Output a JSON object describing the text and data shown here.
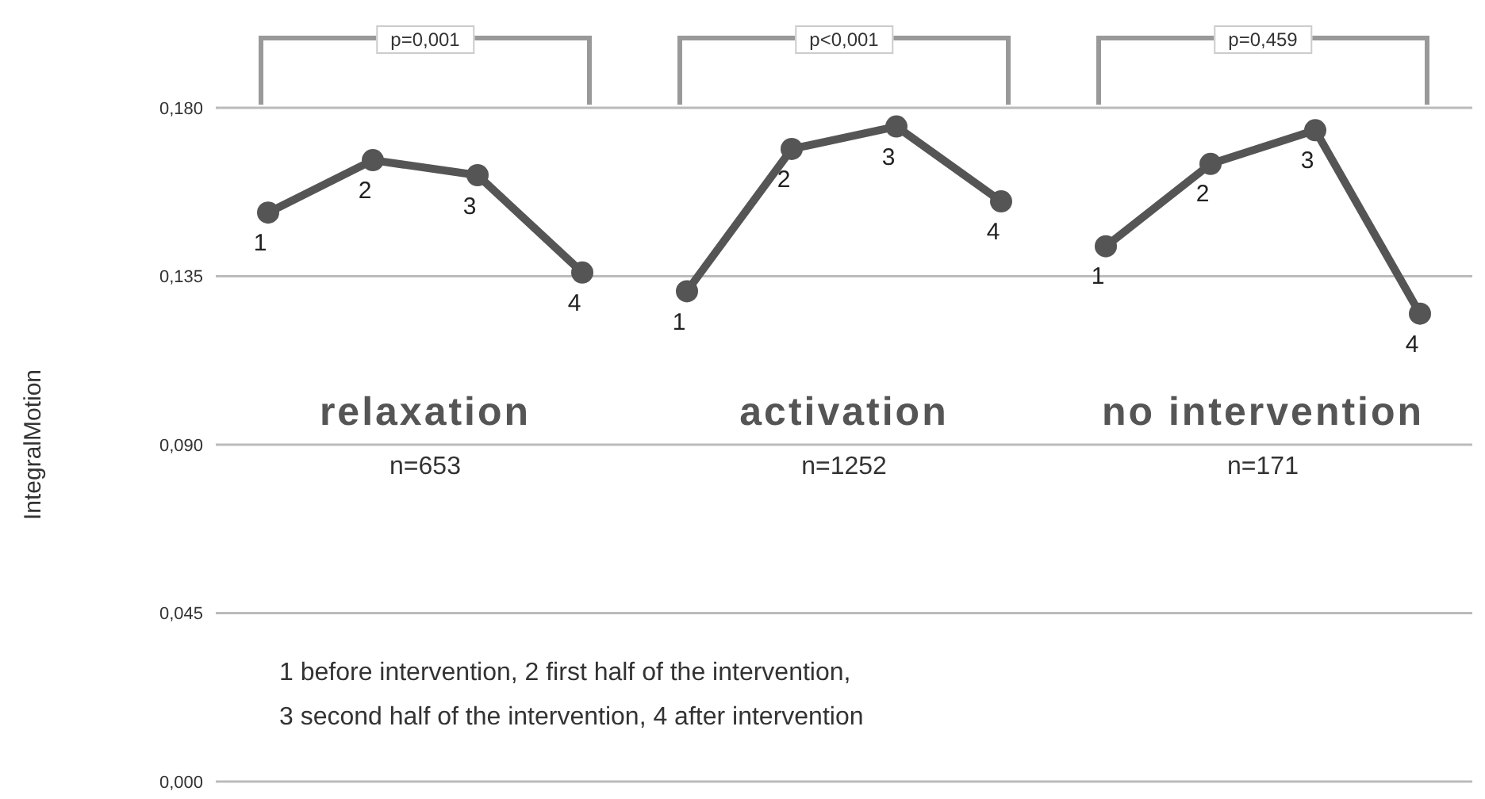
{
  "chart_data": {
    "type": "line",
    "ylabel": "IntegralMotion",
    "categories": [
      null,
      null,
      null,
      null,
      null,
      null,
      null,
      null,
      null,
      null,
      null,
      null
    ],
    "series": [
      {
        "name": "relaxation",
        "color": "#555555",
        "values": [
          0.152,
          0.166,
          0.162,
          0.136,
          null,
          null,
          null,
          null,
          null,
          null,
          null,
          null
        ]
      },
      {
        "name": "activation",
        "color": "#555555",
        "values": [
          null,
          null,
          null,
          null,
          0.131,
          0.169,
          0.175,
          0.155,
          null,
          null,
          null,
          null
        ]
      },
      {
        "name": "no intervention",
        "color": "#555555",
        "values": [
          null,
          null,
          null,
          null,
          null,
          null,
          null,
          null,
          0.143,
          0.165,
          0.174,
          0.125
        ]
      }
    ],
    "ylim": [
      0,
      0.18
    ],
    "yticks": [
      {
        "value": 0,
        "label": "0,000"
      },
      {
        "value": 0.045,
        "label": "0,045"
      },
      {
        "value": 0.09,
        "label": "0,090"
      },
      {
        "value": 0.135,
        "label": "0,135"
      },
      {
        "value": 0.18,
        "label": "0,180"
      }
    ],
    "grid": "y",
    "marker": "circle",
    "line_style": "solid",
    "tick_labels": "y",
    "annotations": [
      "p=0,001",
      "p<0,001",
      "p=0,459",
      "n=653",
      "n=1252",
      "n=171",
      "1 before intervention,   2 first half of the intervention,",
      "3 second half of the intervention,  4 after intervention",
      "1",
      "2",
      "3",
      "4",
      "1",
      "2",
      "3",
      "4",
      "1",
      "2",
      "3",
      "4"
    ]
  }
}
